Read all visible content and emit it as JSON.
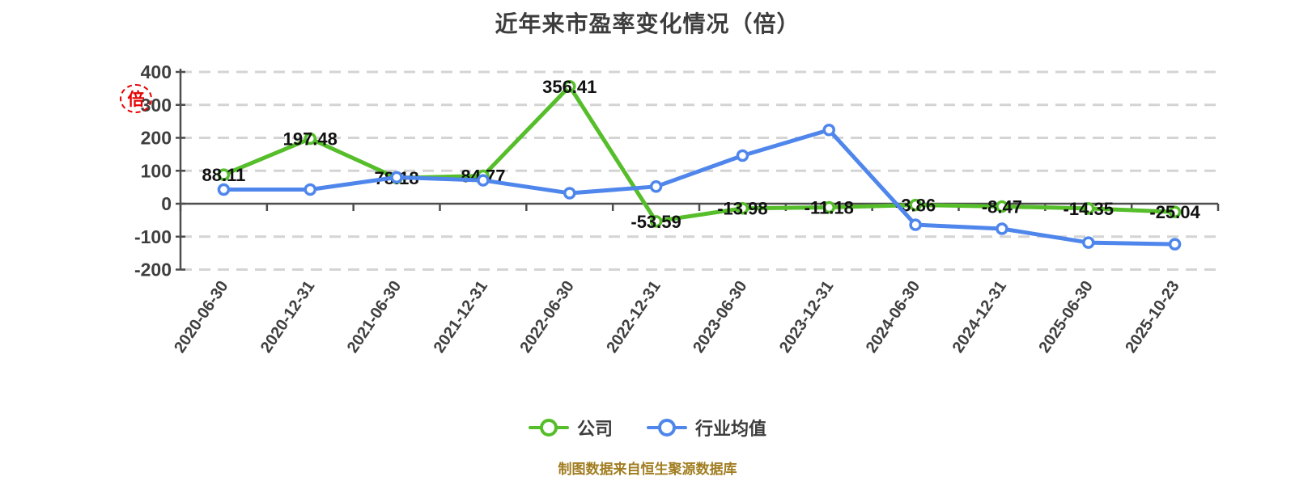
{
  "title": "近年来市盈率变化情况（倍）",
  "unit_stamp": "倍",
  "footer": "制图数据来自恒生聚源数据库",
  "colors": {
    "company_green": "#55be2a",
    "industry_blue": "#4f86ec",
    "grid_dash": "#d4d4d4",
    "axis": "#4d4d4d",
    "tick_label": "#3f3f3f",
    "point_label": "#111111",
    "title_text": "#3d3d3d",
    "footer_gold": "#a17d20",
    "stamp_red": "#e60000",
    "background": "#ffffff"
  },
  "legend": [
    {
      "label": "公司",
      "color": "#55be2a"
    },
    {
      "label": "行业均值",
      "color": "#4f86ec"
    }
  ],
  "chart_data": {
    "type": "line",
    "title": "近年来市盈率变化情况（倍）",
    "unit": "倍",
    "categories": [
      "2020-06-30",
      "2020-12-31",
      "2021-06-30",
      "2021-12-31",
      "2022-06-30",
      "2022-12-31",
      "2023-06-30",
      "2023-12-31",
      "2024-06-30",
      "2024-12-31",
      "2025-06-30",
      "2025-10-23"
    ],
    "series": [
      {
        "name": "公司",
        "color": "#55be2a",
        "values": [
          88.11,
          197.48,
          78.18,
          84.77,
          356.41,
          -53.59,
          -13.98,
          -11.18,
          -3.86,
          -8.47,
          -14.35,
          -25.04
        ],
        "labels": [
          "88.11",
          "197.48",
          "78.18",
          "84.77",
          "356.41",
          "-53.59",
          "-13.98",
          "-11.18",
          "-3.86",
          "-8.47",
          "-14.35",
          "-25.04"
        ],
        "show_labels": true
      },
      {
        "name": "行业均值",
        "color": "#4f86ec",
        "values": [
          43,
          43,
          80,
          71,
          32,
          52,
          146,
          224,
          -64,
          -76,
          -118,
          -123
        ],
        "show_labels": false
      }
    ],
    "ylim": [
      -200,
      400
    ],
    "yticks": [
      400,
      300,
      200,
      100,
      0,
      -100,
      -200
    ],
    "grid": "horizontal-dashed",
    "legend_position": "bottom",
    "x_label_rotation_deg": -56
  }
}
